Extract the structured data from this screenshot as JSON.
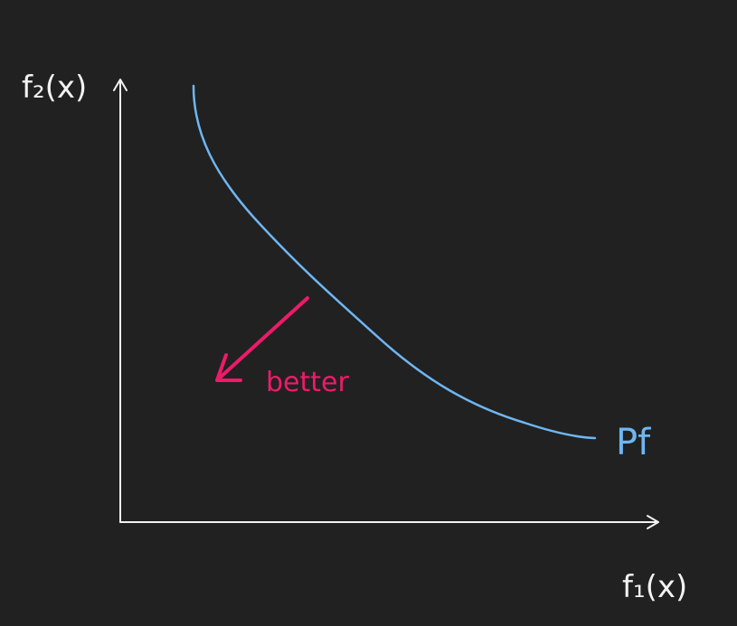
{
  "diagram": {
    "y_axis_label": "f₂(x)",
    "x_axis_label": "f₁(x)",
    "front_label": "Pf",
    "direction_label": "better",
    "colors": {
      "background": "#212121",
      "axis": "#f2f2f2",
      "front": "#6fb6f1",
      "direction": "#ee1a6a"
    }
  }
}
